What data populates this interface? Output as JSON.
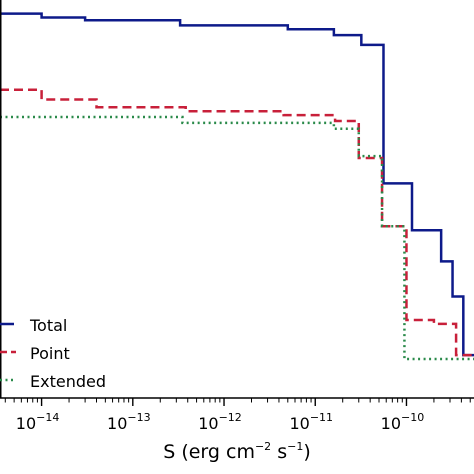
{
  "chart_data": {
    "type": "line",
    "step": true,
    "x_scale": "log",
    "xlabel_parts": {
      "base": "S (erg cm",
      "exp1": "−2",
      "mid": " s",
      "exp2": "−1",
      "end": ")"
    },
    "xlim": [
      3.5e-15,
      5.5e-10
    ],
    "ylim": [
      0,
      1.02
    ],
    "grid": false,
    "legend_position": "lower-left",
    "ticks": [
      {
        "base": "10",
        "exp": "−14",
        "value": 1e-14
      },
      {
        "base": "10",
        "exp": "−13",
        "value": 1e-13
      },
      {
        "base": "10",
        "exp": "−12",
        "value": 1e-12
      },
      {
        "base": "10",
        "exp": "−11",
        "value": 1e-11
      },
      {
        "base": "10",
        "exp": "−10",
        "value": 1e-10
      }
    ],
    "series": [
      {
        "name": "Total",
        "color": "#0d1a8a",
        "dash": "solid",
        "x": [
          3.5e-15,
          1e-14,
          3e-14,
          3.3e-13,
          5e-12,
          1.6e-11,
          3.2e-11,
          5.6e-11,
          1.15e-10,
          2.4e-10,
          3.2e-10,
          4.2e-10,
          5.5e-10
        ],
        "y": [
          0.985,
          0.975,
          0.968,
          0.955,
          0.945,
          0.93,
          0.905,
          0.55,
          0.43,
          0.35,
          0.26,
          0.11,
          0.11
        ]
      },
      {
        "name": "Point",
        "color": "#c8203a",
        "dash": "dashed",
        "x": [
          3.5e-15,
          1e-14,
          4e-14,
          3.8e-13,
          4.5e-12,
          1.65e-11,
          3e-11,
          5.4e-11,
          1e-10,
          2e-10,
          3.5e-10,
          5.5e-10
        ],
        "y": [
          0.79,
          0.765,
          0.745,
          0.735,
          0.725,
          0.71,
          0.615,
          0.44,
          0.2,
          0.19,
          0.11,
          0.11
        ]
      },
      {
        "name": "Extended",
        "color": "#2a8a4a",
        "dash": "dotted",
        "x": [
          3.5e-15,
          1e-14,
          3.5e-13,
          1.6e-11,
          3e-11,
          5.4e-11,
          9.5e-11,
          1.8e-10,
          5.5e-10
        ],
        "y": [
          0.72,
          0.72,
          0.705,
          0.69,
          0.62,
          0.44,
          0.1,
          0.1,
          0.1
        ]
      }
    ]
  }
}
